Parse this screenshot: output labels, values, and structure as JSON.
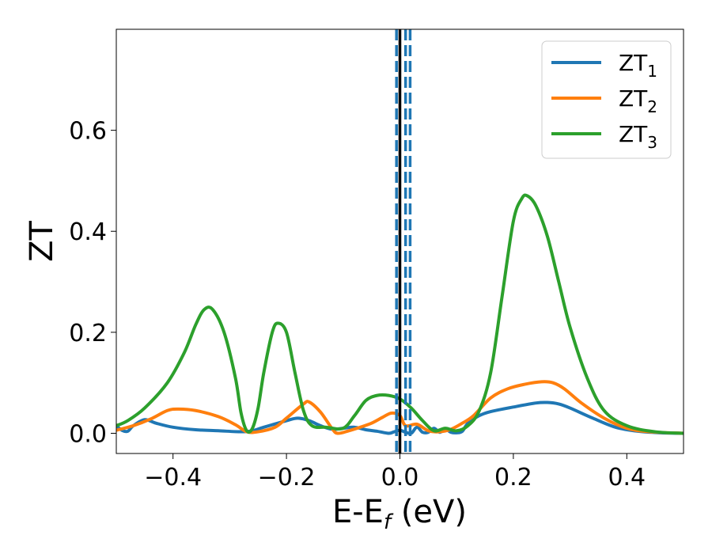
{
  "chart_data": {
    "type": "line",
    "xlabel": "E-E",
    "xlabel_sub": "f",
    "xlabel_unit": " (eV)",
    "ylabel": "ZT",
    "xlim": [
      -0.5,
      0.5
    ],
    "ylim": [
      -0.04,
      0.8
    ],
    "x_ticks": [
      -0.4,
      -0.2,
      0.0,
      0.2,
      0.4
    ],
    "x_tick_labels": [
      "−0.4",
      "−0.2",
      "0.0",
      "0.2",
      "0.4"
    ],
    "y_ticks": [
      0.0,
      0.2,
      0.4,
      0.6
    ],
    "y_tick_labels": [
      "0.0",
      "0.2",
      "0.4",
      "0.6"
    ],
    "grid": false,
    "legend_position": "top-right",
    "vlines": [
      {
        "x": 0.0,
        "color": "#000000",
        "style": "solid"
      },
      {
        "x": -0.006,
        "color": "#1f77b4",
        "style": "dashed"
      },
      {
        "x": 0.01,
        "color": "#1f77b4",
        "style": "dashed"
      },
      {
        "x": 0.018,
        "color": "#1f77b4",
        "style": "dashed"
      }
    ],
    "series": [
      {
        "name": "ZT",
        "subscript": "1",
        "color": "#1f77b4",
        "points": [
          [
            -0.5,
            0.015
          ],
          [
            -0.49,
            0.006
          ],
          [
            -0.48,
            0.004
          ],
          [
            -0.47,
            0.015
          ],
          [
            -0.45,
            0.027
          ],
          [
            -0.43,
            0.02
          ],
          [
            -0.4,
            0.012
          ],
          [
            -0.36,
            0.007
          ],
          [
            -0.32,
            0.005
          ],
          [
            -0.28,
            0.003
          ],
          [
            -0.26,
            0.005
          ],
          [
            -0.24,
            0.012
          ],
          [
            -0.2,
            0.025
          ],
          [
            -0.18,
            0.03
          ],
          [
            -0.16,
            0.025
          ],
          [
            -0.14,
            0.015
          ],
          [
            -0.12,
            0.008
          ],
          [
            -0.1,
            0.01
          ],
          [
            -0.08,
            0.012
          ],
          [
            -0.06,
            0.007
          ],
          [
            -0.04,
            0.004
          ],
          [
            -0.02,
            0.0
          ],
          [
            -0.01,
            0.003
          ],
          [
            0.0,
            0.006
          ],
          [
            0.01,
            0.002
          ],
          [
            0.02,
            0.0
          ],
          [
            0.03,
            0.012
          ],
          [
            0.04,
            0.002
          ],
          [
            0.05,
            0.002
          ],
          [
            0.06,
            0.01
          ],
          [
            0.07,
            0.002
          ],
          [
            0.08,
            0.008
          ],
          [
            0.09,
            0.002
          ],
          [
            0.1,
            0.001
          ],
          [
            0.11,
            0.004
          ],
          [
            0.12,
            0.02
          ],
          [
            0.14,
            0.035
          ],
          [
            0.16,
            0.043
          ],
          [
            0.2,
            0.052
          ],
          [
            0.24,
            0.06
          ],
          [
            0.26,
            0.061
          ],
          [
            0.28,
            0.058
          ],
          [
            0.3,
            0.05
          ],
          [
            0.34,
            0.03
          ],
          [
            0.38,
            0.012
          ],
          [
            0.42,
            0.004
          ],
          [
            0.46,
            0.001
          ],
          [
            0.5,
            0.0
          ]
        ]
      },
      {
        "name": "ZT",
        "subscript": "2",
        "color": "#ff7f0e",
        "points": [
          [
            -0.5,
            0.006
          ],
          [
            -0.47,
            0.015
          ],
          [
            -0.44,
            0.028
          ],
          [
            -0.41,
            0.045
          ],
          [
            -0.39,
            0.048
          ],
          [
            -0.36,
            0.045
          ],
          [
            -0.32,
            0.033
          ],
          [
            -0.29,
            0.017
          ],
          [
            -0.27,
            0.003
          ],
          [
            -0.25,
            0.003
          ],
          [
            -0.22,
            0.012
          ],
          [
            -0.2,
            0.03
          ],
          [
            -0.17,
            0.058
          ],
          [
            -0.16,
            0.062
          ],
          [
            -0.14,
            0.042
          ],
          [
            -0.12,
            0.01
          ],
          [
            -0.11,
            0.0
          ],
          [
            -0.09,
            0.005
          ],
          [
            -0.07,
            0.012
          ],
          [
            -0.05,
            0.02
          ],
          [
            -0.03,
            0.032
          ],
          [
            -0.015,
            0.04
          ],
          [
            0.0,
            0.035
          ],
          [
            0.01,
            0.015
          ],
          [
            0.03,
            0.018
          ],
          [
            0.05,
            0.005
          ],
          [
            0.07,
            0.003
          ],
          [
            0.09,
            0.008
          ],
          [
            0.11,
            0.02
          ],
          [
            0.13,
            0.035
          ],
          [
            0.16,
            0.07
          ],
          [
            0.19,
            0.088
          ],
          [
            0.22,
            0.097
          ],
          [
            0.25,
            0.102
          ],
          [
            0.27,
            0.1
          ],
          [
            0.29,
            0.088
          ],
          [
            0.32,
            0.06
          ],
          [
            0.36,
            0.03
          ],
          [
            0.4,
            0.01
          ],
          [
            0.44,
            0.003
          ],
          [
            0.5,
            0.0
          ]
        ]
      },
      {
        "name": "ZT",
        "subscript": "3",
        "color": "#2ca02c",
        "points": [
          [
            -0.5,
            0.015
          ],
          [
            -0.48,
            0.025
          ],
          [
            -0.45,
            0.05
          ],
          [
            -0.41,
            0.1
          ],
          [
            -0.38,
            0.16
          ],
          [
            -0.36,
            0.215
          ],
          [
            -0.345,
            0.245
          ],
          [
            -0.33,
            0.245
          ],
          [
            -0.31,
            0.2
          ],
          [
            -0.29,
            0.11
          ],
          [
            -0.28,
            0.04
          ],
          [
            -0.27,
            0.005
          ],
          [
            -0.26,
            0.01
          ],
          [
            -0.25,
            0.05
          ],
          [
            -0.24,
            0.12
          ],
          [
            -0.225,
            0.2
          ],
          [
            -0.215,
            0.218
          ],
          [
            -0.2,
            0.2
          ],
          [
            -0.185,
            0.12
          ],
          [
            -0.17,
            0.045
          ],
          [
            -0.155,
            0.015
          ],
          [
            -0.13,
            0.012
          ],
          [
            -0.1,
            0.01
          ],
          [
            -0.08,
            0.035
          ],
          [
            -0.06,
            0.065
          ],
          [
            -0.04,
            0.075
          ],
          [
            -0.02,
            0.075
          ],
          [
            0.0,
            0.068
          ],
          [
            0.02,
            0.05
          ],
          [
            0.04,
            0.025
          ],
          [
            0.06,
            0.005
          ],
          [
            0.08,
            0.01
          ],
          [
            0.1,
            0.005
          ],
          [
            0.12,
            0.015
          ],
          [
            0.14,
            0.045
          ],
          [
            0.16,
            0.12
          ],
          [
            0.18,
            0.27
          ],
          [
            0.2,
            0.42
          ],
          [
            0.215,
            0.465
          ],
          [
            0.225,
            0.47
          ],
          [
            0.24,
            0.45
          ],
          [
            0.26,
            0.39
          ],
          [
            0.28,
            0.3
          ],
          [
            0.3,
            0.21
          ],
          [
            0.33,
            0.11
          ],
          [
            0.36,
            0.045
          ],
          [
            0.4,
            0.015
          ],
          [
            0.45,
            0.003
          ],
          [
            0.5,
            0.0
          ]
        ]
      }
    ]
  }
}
